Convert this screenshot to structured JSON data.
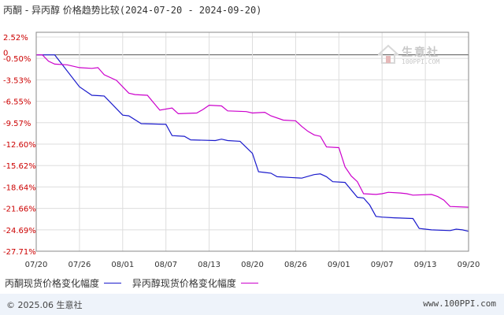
{
  "header": {
    "title": "丙酮 - 异丙醇 价格趋势比较",
    "date_range": "(2024-07-20 - 2024-09-20)"
  },
  "watermark": {
    "text_cn": "生意社",
    "text_en": "100PPI.COM"
  },
  "legend": {
    "series_1": "丙酮现货价格变化幅度",
    "series_2": "异丙醇现货价格变化幅度"
  },
  "footer": {
    "copyright": "© 2025.06 生意社",
    "website": "www.100PPI.com"
  },
  "colors": {
    "series_1": "#1a1acc",
    "series_2": "#cc00cc",
    "tick_text": "#cc0000",
    "grid": "#dddddd",
    "axis": "#888888"
  },
  "chart_data": {
    "type": "line",
    "title": "丙酮 - 异丙醇 价格趋势比较",
    "xlabel": "",
    "ylabel": "",
    "y_unit": "%",
    "y_ticks": [
      "2.52%",
      "-0.50%",
      "-3.53%",
      "-6.55%",
      "-9.57%",
      "-12.60%",
      "-15.62%",
      "-18.64%",
      "-21.66%",
      "-24.69%",
      "-27.71%"
    ],
    "y_tick_values": [
      2.52,
      -0.5,
      -3.53,
      -6.55,
      -9.57,
      -12.6,
      -15.62,
      -18.64,
      -21.66,
      -24.69,
      -27.71
    ],
    "ylim": [
      -27.71,
      2.52
    ],
    "zero_label": "0",
    "x_ticks": [
      "07/20",
      "07/26",
      "08/01",
      "08/07",
      "08/13",
      "08/20",
      "08/26",
      "09/01",
      "09/07",
      "09/13",
      "09/20"
    ],
    "grid": true,
    "legend_position": "bottom",
    "series": [
      {
        "name": "丙酮现货价格变化幅度",
        "points": [
          [
            0,
            0.0
          ],
          [
            3,
            0.0
          ],
          [
            7,
            -4.5
          ],
          [
            9,
            -5.7
          ],
          [
            11,
            -5.8
          ],
          [
            14,
            -8.5
          ],
          [
            15,
            -8.6
          ],
          [
            17,
            -9.7
          ],
          [
            21,
            -9.8
          ],
          [
            22,
            -11.4
          ],
          [
            24,
            -11.5
          ],
          [
            25,
            -12.0
          ],
          [
            29,
            -12.1
          ],
          [
            30,
            -11.9
          ],
          [
            31,
            -12.1
          ],
          [
            33,
            -12.2
          ],
          [
            35,
            -13.9
          ],
          [
            36,
            -16.5
          ],
          [
            37,
            -16.6
          ],
          [
            38,
            -16.7
          ],
          [
            39,
            -17.2
          ],
          [
            41,
            -17.3
          ],
          [
            43,
            -17.4
          ],
          [
            45,
            -16.9
          ],
          [
            46,
            -16.8
          ],
          [
            47,
            -17.2
          ],
          [
            48,
            -17.9
          ],
          [
            50,
            -18.0
          ],
          [
            52,
            -20.1
          ],
          [
            53,
            -20.2
          ],
          [
            54,
            -21.2
          ],
          [
            55,
            -22.8
          ],
          [
            56,
            -22.9
          ],
          [
            58,
            -23.0
          ],
          [
            61,
            -23.1
          ],
          [
            62,
            -24.5
          ],
          [
            63,
            -24.6
          ],
          [
            64,
            -24.7
          ],
          [
            67,
            -24.8
          ],
          [
            68,
            -24.6
          ],
          [
            69,
            -24.7
          ],
          [
            70,
            -24.9
          ]
        ]
      },
      {
        "name": "异丙醇现货价格变化幅度",
        "points": [
          [
            0,
            0.0
          ],
          [
            1,
            0.0
          ],
          [
            2,
            -0.9
          ],
          [
            3,
            -1.3
          ],
          [
            5,
            -1.4
          ],
          [
            7,
            -1.8
          ],
          [
            9,
            -1.9
          ],
          [
            10,
            -1.8
          ],
          [
            11,
            -2.8
          ],
          [
            13,
            -3.6
          ],
          [
            15,
            -5.4
          ],
          [
            16,
            -5.6
          ],
          [
            18,
            -5.7
          ],
          [
            20,
            -7.8
          ],
          [
            22,
            -7.5
          ],
          [
            23,
            -8.3
          ],
          [
            26,
            -8.2
          ],
          [
            27,
            -7.7
          ],
          [
            28,
            -7.1
          ],
          [
            30,
            -7.2
          ],
          [
            31,
            -7.9
          ],
          [
            34,
            -8.0
          ],
          [
            35,
            -8.2
          ],
          [
            37,
            -8.1
          ],
          [
            38,
            -8.6
          ],
          [
            40,
            -9.2
          ],
          [
            42,
            -9.3
          ],
          [
            43,
            -10.1
          ],
          [
            44,
            -10.8
          ],
          [
            45,
            -11.3
          ],
          [
            46,
            -11.5
          ],
          [
            47,
            -13.0
          ],
          [
            49,
            -13.1
          ],
          [
            50,
            -15.8
          ],
          [
            51,
            -17.1
          ],
          [
            52,
            -17.9
          ],
          [
            53,
            -19.6
          ],
          [
            55,
            -19.7
          ],
          [
            56,
            -19.6
          ],
          [
            57,
            -19.4
          ],
          [
            59,
            -19.5
          ],
          [
            60,
            -19.6
          ],
          [
            61,
            -19.8
          ],
          [
            64,
            -19.7
          ],
          [
            65,
            -20.0
          ],
          [
            66,
            -20.5
          ],
          [
            67,
            -21.4
          ],
          [
            70,
            -21.5
          ]
        ]
      }
    ]
  }
}
